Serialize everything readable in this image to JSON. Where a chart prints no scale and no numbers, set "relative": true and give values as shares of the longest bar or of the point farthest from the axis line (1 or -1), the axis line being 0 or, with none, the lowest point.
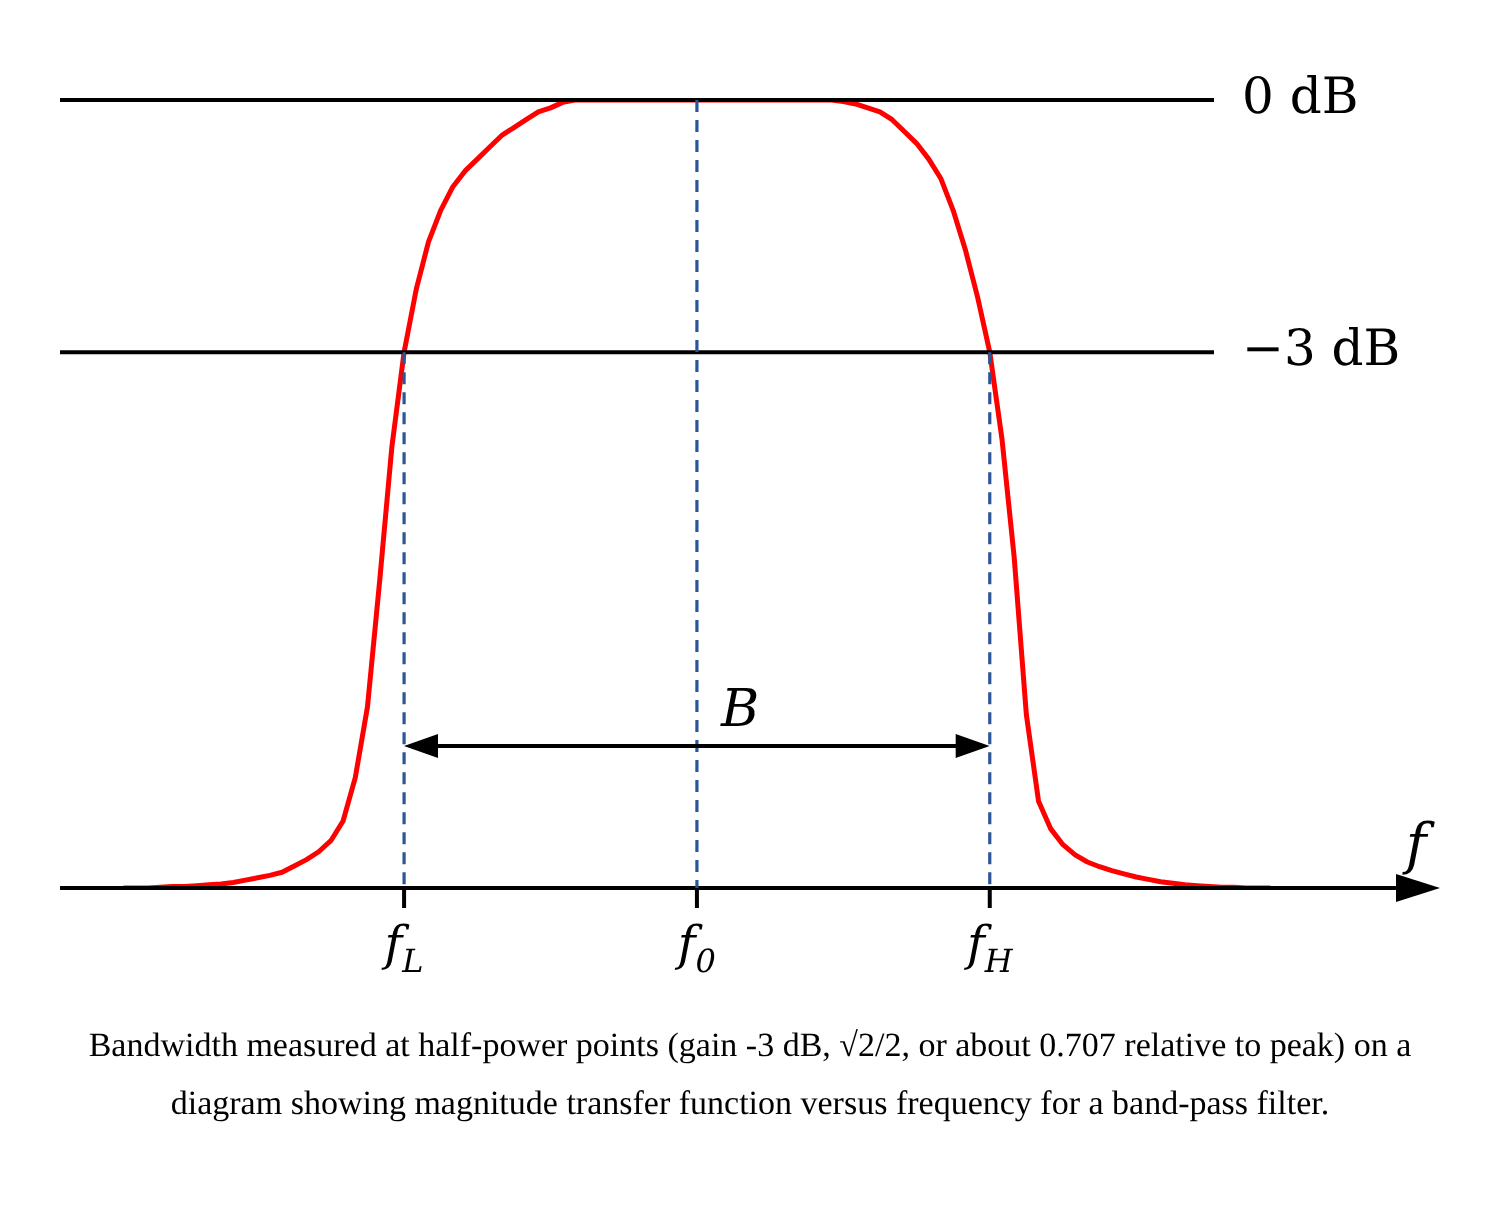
{
  "chart_data": {
    "type": "line",
    "relative": true,
    "xlabel": "f",
    "categories": [
      null,
      null,
      null,
      null,
      null,
      null,
      null,
      null,
      null,
      null,
      null,
      null,
      null,
      null,
      null,
      null,
      null,
      null,
      null,
      null,
      null,
      null,
      null,
      "f$_{L}$",
      null,
      null,
      null,
      null,
      null,
      null,
      null,
      null,
      null,
      null,
      null,
      null,
      null,
      null,
      null,
      null,
      null,
      null,
      null,
      null,
      null,
      null,
      null,
      "f$_{0}$",
      null,
      null,
      null,
      null,
      null,
      null,
      null,
      null,
      null,
      null,
      null,
      null,
      null,
      null,
      null,
      null,
      null,
      null,
      null,
      null,
      null,
      null,
      null,
      "f$_{H}$",
      null,
      null,
      null,
      null,
      null,
      null,
      null,
      null,
      null,
      null,
      null,
      null,
      null,
      null,
      null,
      null,
      null,
      null,
      null,
      null,
      null,
      null,
      null
    ],
    "series": [
      {
        "color": "#ff0000",
        "values": [
          0,
          0,
          0,
          0.001,
          0.002,
          0.002,
          0.003,
          0.004,
          0.005,
          0.007,
          0.01,
          0.013,
          0.016,
          0.02,
          0.028,
          0.036,
          0.046,
          0.06,
          0.085,
          0.14,
          0.23,
          0.39,
          0.56,
          0.68,
          0.76,
          0.82,
          0.86,
          0.89,
          0.91,
          0.925,
          0.94,
          0.955,
          0.965,
          0.975,
          0.985,
          0.99,
          0.997,
          1,
          1,
          1,
          1,
          1,
          1,
          1,
          1,
          1,
          1,
          1,
          1,
          1,
          1,
          1,
          1,
          1,
          1,
          1,
          1,
          1,
          1,
          0.998,
          0.995,
          0.99,
          0.985,
          0.975,
          0.96,
          0.945,
          0.925,
          0.9,
          0.86,
          0.81,
          0.75,
          0.68,
          0.57,
          0.42,
          0.22,
          0.11,
          0.075,
          0.055,
          0.042,
          0.033,
          0.027,
          0.022,
          0.018,
          0.014,
          0.011,
          0.008,
          0.006,
          0.004,
          0.003,
          0.002,
          0.001,
          0.001,
          0,
          0,
          0
        ]
      }
    ],
    "ref_lines": [
      {
        "axis": "y",
        "value": 1,
        "label": "0 dB",
        "color": "#000000",
        "line_style": "solid"
      },
      {
        "axis": "y",
        "value": 0.68,
        "label": "−3 dB",
        "color": "#000000",
        "line_style": "solid"
      },
      {
        "axis": "x",
        "value": "f$_{L}$",
        "color": "#2b5597",
        "line_style": "dashed"
      },
      {
        "axis": "x",
        "value": "f$_{0}$",
        "color": "#2b5597",
        "line_style": "dashed"
      },
      {
        "axis": "x",
        "value": "f$_{H}$",
        "color": "#2b5597",
        "line_style": "dashed"
      }
    ],
    "annotations": [
      {
        "text": "B",
        "x": "f$_{0}$",
        "y": 0.18
      },
      "Bandwidth measured at half-power points (gain -3 dB, √2/2, or about 0.707 relative to peak) on a diagram showing magnitude transfer function versus frequency for a band-pass filter."
    ]
  }
}
